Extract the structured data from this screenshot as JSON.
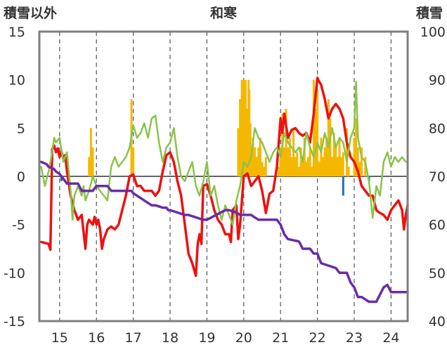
{
  "chart_data": {
    "type": "line",
    "title": "和寒",
    "left_axis_label": "積雪以外",
    "right_axis_label": "積雪",
    "x_ticks": [
      "15",
      "16",
      "17",
      "18",
      "19",
      "20",
      "21",
      "22",
      "23",
      "24"
    ],
    "x_range": [
      14.45,
      24.45
    ],
    "ylim_left": [
      -15,
      15
    ],
    "ylim_right": [
      40,
      100
    ],
    "y_ticks_left": [
      15,
      10,
      5,
      0,
      -5,
      -10,
      -15
    ],
    "y_ticks_right": [
      100,
      90,
      80,
      70,
      60,
      50,
      40
    ],
    "grid": "dashed vertical lines at year ticks; solid horizontal line at 0",
    "series": [
      {
        "color": "#ee1111",
        "axis": "left",
        "x": [
          14.5,
          14.7,
          14.75,
          14.8,
          14.85,
          14.9,
          14.95,
          15.0,
          15.05,
          15.1,
          15.15,
          15.2,
          15.3,
          15.4,
          15.5,
          15.6,
          15.7,
          15.75,
          15.8,
          15.9,
          15.95,
          16.0,
          16.05,
          16.1,
          16.15,
          16.2,
          16.25,
          16.3,
          16.4,
          16.5,
          16.6,
          16.7,
          16.8,
          16.9,
          17.0,
          17.1,
          17.2,
          17.3,
          17.4,
          17.5,
          17.6,
          17.7,
          17.8,
          17.9,
          18.0,
          18.1,
          18.2,
          18.3,
          18.4,
          18.5,
          18.6,
          18.7,
          18.75,
          18.8,
          18.85,
          18.9,
          19.0,
          19.1,
          19.2,
          19.3,
          19.4,
          19.5,
          19.6,
          19.65,
          19.7,
          19.8,
          19.85,
          19.9,
          20.0,
          20.1,
          20.2,
          20.3,
          20.4,
          20.5,
          20.6,
          20.7,
          20.8,
          20.9,
          20.95,
          21.0,
          21.05,
          21.1,
          21.2,
          21.3,
          21.4,
          21.5,
          21.6,
          21.7,
          21.8,
          21.9,
          22.0,
          22.05,
          22.1,
          22.2,
          22.3,
          22.4,
          22.5,
          22.6,
          22.7,
          22.8,
          22.9,
          23.0,
          23.1,
          23.2,
          23.3,
          23.4,
          23.5,
          23.6,
          23.7,
          23.8,
          23.9,
          24.0,
          24.1,
          24.2,
          24.3,
          24.35,
          24.4,
          24.45
        ],
        "y": [
          -6.8,
          -7.0,
          -7.6,
          2.8,
          3.2,
          2.5,
          2.9,
          2.0,
          2.6,
          1.8,
          2.2,
          0.5,
          -2.0,
          -3.5,
          -4.5,
          -4.0,
          -7.5,
          -5.0,
          -4.5,
          -5.0,
          -4.2,
          -5.0,
          -4.5,
          -5.5,
          -7.5,
          -6.5,
          -6.0,
          -5.5,
          -5.2,
          -5.5,
          -5.0,
          -3.5,
          -2.0,
          0.0,
          0.2,
          -1.0,
          -1.0,
          -1.5,
          -1.5,
          -1.5,
          -2.0,
          -1.5,
          0.5,
          2.2,
          2.5,
          1.5,
          -0.5,
          -2.0,
          -5.0,
          -8.0,
          -9.0,
          -10.3,
          -7.0,
          -6.0,
          -7.0,
          -1.0,
          -0.8,
          -2.0,
          -3.5,
          -4.5,
          -5.0,
          -6.0,
          -6.0,
          -6.8,
          -3.5,
          -3.0,
          -6.5,
          -5.0,
          0.0,
          0.3,
          -1.0,
          -0.5,
          0.0,
          -1.5,
          -3.8,
          -1.8,
          -1.5,
          1.0,
          3.5,
          6.0,
          4.5,
          6.5,
          4.0,
          4.8,
          5.0,
          4.5,
          4.2,
          4.5,
          3.5,
          6.5,
          10.2,
          9.8,
          9.5,
          8.0,
          6.0,
          7.0,
          7.5,
          7.0,
          6.0,
          3.5,
          2.0,
          1.5,
          0.5,
          -1.0,
          -1.5,
          -2.0,
          -2.0,
          -3.5,
          -3.8,
          -4.0,
          -4.5,
          -3.5,
          -3.0,
          -2.5,
          -3.5,
          -5.5,
          -4.0,
          -3.0
        ],
        "stroke_width": 3.5
      },
      {
        "color": "#8bc34a",
        "axis": "left",
        "x": [
          14.5,
          14.6,
          14.7,
          14.8,
          14.85,
          14.9,
          15.0,
          15.1,
          15.2,
          15.3,
          15.35,
          15.4,
          15.5,
          15.6,
          15.65,
          15.7,
          15.8,
          15.9,
          16.0,
          16.1,
          16.2,
          16.3,
          16.4,
          16.5,
          16.6,
          16.7,
          16.8,
          16.9,
          17.0,
          17.1,
          17.2,
          17.3,
          17.4,
          17.5,
          17.6,
          17.7,
          17.8,
          17.9,
          18.0,
          18.1,
          18.2,
          18.3,
          18.4,
          18.5,
          18.6,
          18.7,
          18.8,
          18.9,
          19.0,
          19.1,
          19.2,
          19.3,
          19.4,
          19.5,
          19.6,
          19.7,
          19.8,
          19.9,
          20.0,
          20.1,
          20.2,
          20.3,
          20.4,
          20.5,
          20.6,
          20.7,
          20.8,
          20.9,
          21.0,
          21.1,
          21.2,
          21.3,
          21.4,
          21.5,
          21.6,
          21.7,
          21.8,
          21.9,
          22.0,
          22.1,
          22.2,
          22.3,
          22.4,
          22.5,
          22.6,
          22.7,
          22.8,
          22.9,
          23.0,
          23.05,
          23.1,
          23.2,
          23.3,
          23.4,
          23.5,
          23.6,
          23.7,
          23.8,
          23.9,
          24.0,
          24.1,
          24.2,
          24.3,
          24.4,
          24.45
        ],
        "y": [
          1.0,
          -1.0,
          0.5,
          2.5,
          4.0,
          3.5,
          4.0,
          1.5,
          2.5,
          -1.5,
          -4.5,
          -2.0,
          -1.0,
          -2.0,
          -1.0,
          -2.5,
          -1.5,
          0.0,
          -1.0,
          -1.5,
          -2.0,
          -2.5,
          1.0,
          2.0,
          1.0,
          1.5,
          2.0,
          3.0,
          5.3,
          4.0,
          4.5,
          5.5,
          4.0,
          6.0,
          6.3,
          3.5,
          1.5,
          3.0,
          3.5,
          5.0,
          2.0,
          0.0,
          -0.5,
          0.5,
          1.5,
          -1.0,
          -2.0,
          -0.5,
          1.5,
          -2.0,
          -1.0,
          -3.0,
          -4.5,
          -3.0,
          -4.0,
          -5.0,
          -2.5,
          -1.0,
          1.5,
          1.0,
          2.0,
          5.0,
          4.0,
          3.5,
          2.5,
          1.5,
          2.5,
          3.0,
          2.0,
          4.5,
          3.5,
          3.0,
          2.5,
          3.0,
          1.5,
          4.5,
          3.0,
          2.0,
          3.5,
          2.5,
          4.5,
          3.0,
          5.0,
          3.0,
          4.0,
          3.5,
          1.5,
          4.0,
          5.0,
          9.8,
          4.0,
          2.0,
          1.5,
          -0.5,
          -4.3,
          -1.0,
          -2.0,
          1.5,
          2.5,
          1.0,
          2.0,
          1.5,
          2.0,
          1.5,
          1.5
        ],
        "stroke_width": 2.5
      },
      {
        "color": "#6a2ca8",
        "axis": "right",
        "x": [
          14.5,
          14.65,
          14.7,
          14.85,
          14.9,
          15.0,
          15.1,
          15.15,
          15.2,
          15.5,
          15.6,
          15.9,
          16.0,
          16.3,
          16.4,
          16.95,
          17.0,
          17.3,
          17.4,
          17.5,
          17.6,
          17.8,
          17.9,
          17.95,
          18.0,
          18.4,
          18.5,
          18.9,
          19.0,
          19.5,
          19.6,
          19.8,
          19.9,
          20.1,
          20.2,
          20.3,
          20.4,
          20.9,
          21.0,
          21.1,
          21.2,
          21.5,
          21.6,
          21.8,
          21.9,
          22.0,
          22.1,
          22.5,
          22.6,
          22.8,
          22.9,
          23.0,
          23.1,
          23.2,
          23.4,
          23.5,
          23.6,
          23.7,
          23.8,
          23.9,
          24.0,
          24.45
        ],
        "y": [
          73,
          72.5,
          72,
          71.5,
          71,
          70.5,
          69.5,
          69,
          68.5,
          68.5,
          67,
          67,
          68,
          68,
          67,
          67,
          66.5,
          65,
          64.5,
          64,
          64,
          63.5,
          63.5,
          63,
          63,
          62,
          62,
          61,
          61,
          63,
          63,
          62.5,
          62,
          62,
          62,
          61.5,
          61,
          61,
          60,
          58,
          57,
          56.5,
          55,
          55,
          54,
          54,
          52,
          51,
          50,
          50,
          48,
          47,
          45,
          45,
          44,
          44,
          44,
          45.5,
          47,
          47.5,
          46,
          46
        ],
        "stroke_width": 3.5
      }
    ],
    "bars_orange": {
      "color": "#f5b800",
      "axis": "left",
      "x": [
        15.8,
        15.85,
        15.9,
        16.95,
        17.0,
        19.85,
        19.9,
        19.92,
        19.95,
        19.97,
        20.0,
        20.02,
        20.05,
        20.08,
        20.1,
        20.13,
        20.15,
        20.18,
        20.2,
        20.25,
        20.3,
        20.35,
        20.4,
        20.45,
        20.5,
        20.55,
        20.6,
        20.95,
        21.0,
        21.05,
        21.1,
        21.15,
        21.2,
        21.25,
        21.3,
        21.35,
        21.4,
        21.45,
        21.5,
        21.55,
        21.6,
        21.65,
        21.7,
        21.75,
        21.8,
        21.85,
        21.9,
        21.95,
        22.0,
        22.05,
        22.1,
        22.15,
        22.2,
        22.25,
        22.3,
        22.35,
        22.4,
        22.45,
        22.5,
        22.55,
        22.6,
        22.65,
        22.7,
        22.8,
        22.85,
        23.0,
        23.05,
        23.1,
        23.15,
        23.2,
        23.3
      ],
      "y": [
        2.0,
        5.0,
        3.0,
        8.0,
        3.0,
        5.0,
        8.0,
        5.5,
        10.0,
        9.0,
        10.0,
        6.0,
        10.0,
        4.0,
        7.0,
        10.0,
        9.0,
        5.5,
        3.0,
        4.0,
        3.0,
        2.0,
        3.0,
        4.0,
        1.5,
        1.0,
        2.0,
        1.0,
        3.0,
        6.5,
        3.0,
        7.0,
        3.0,
        4.0,
        2.0,
        5.0,
        2.0,
        2.5,
        1.0,
        3.0,
        2.0,
        4.0,
        1.5,
        2.0,
        3.0,
        1.0,
        10.0,
        7.0,
        9.0,
        1.5,
        4.0,
        2.0,
        3.0,
        4.0,
        8.0,
        6.0,
        2.0,
        4.5,
        3.0,
        2.0,
        4.0,
        2.0,
        2.5,
        5.0,
        1.0,
        4.0,
        6.0,
        3.0,
        1.5,
        3.0,
        2.0
      ]
    },
    "bars_blue": {
      "color": "#1f6fbf",
      "axis": "left",
      "x": [
        15.05,
        22.7,
        23.4
      ],
      "y": [
        -0.5,
        -2.0,
        -0.5
      ]
    }
  }
}
